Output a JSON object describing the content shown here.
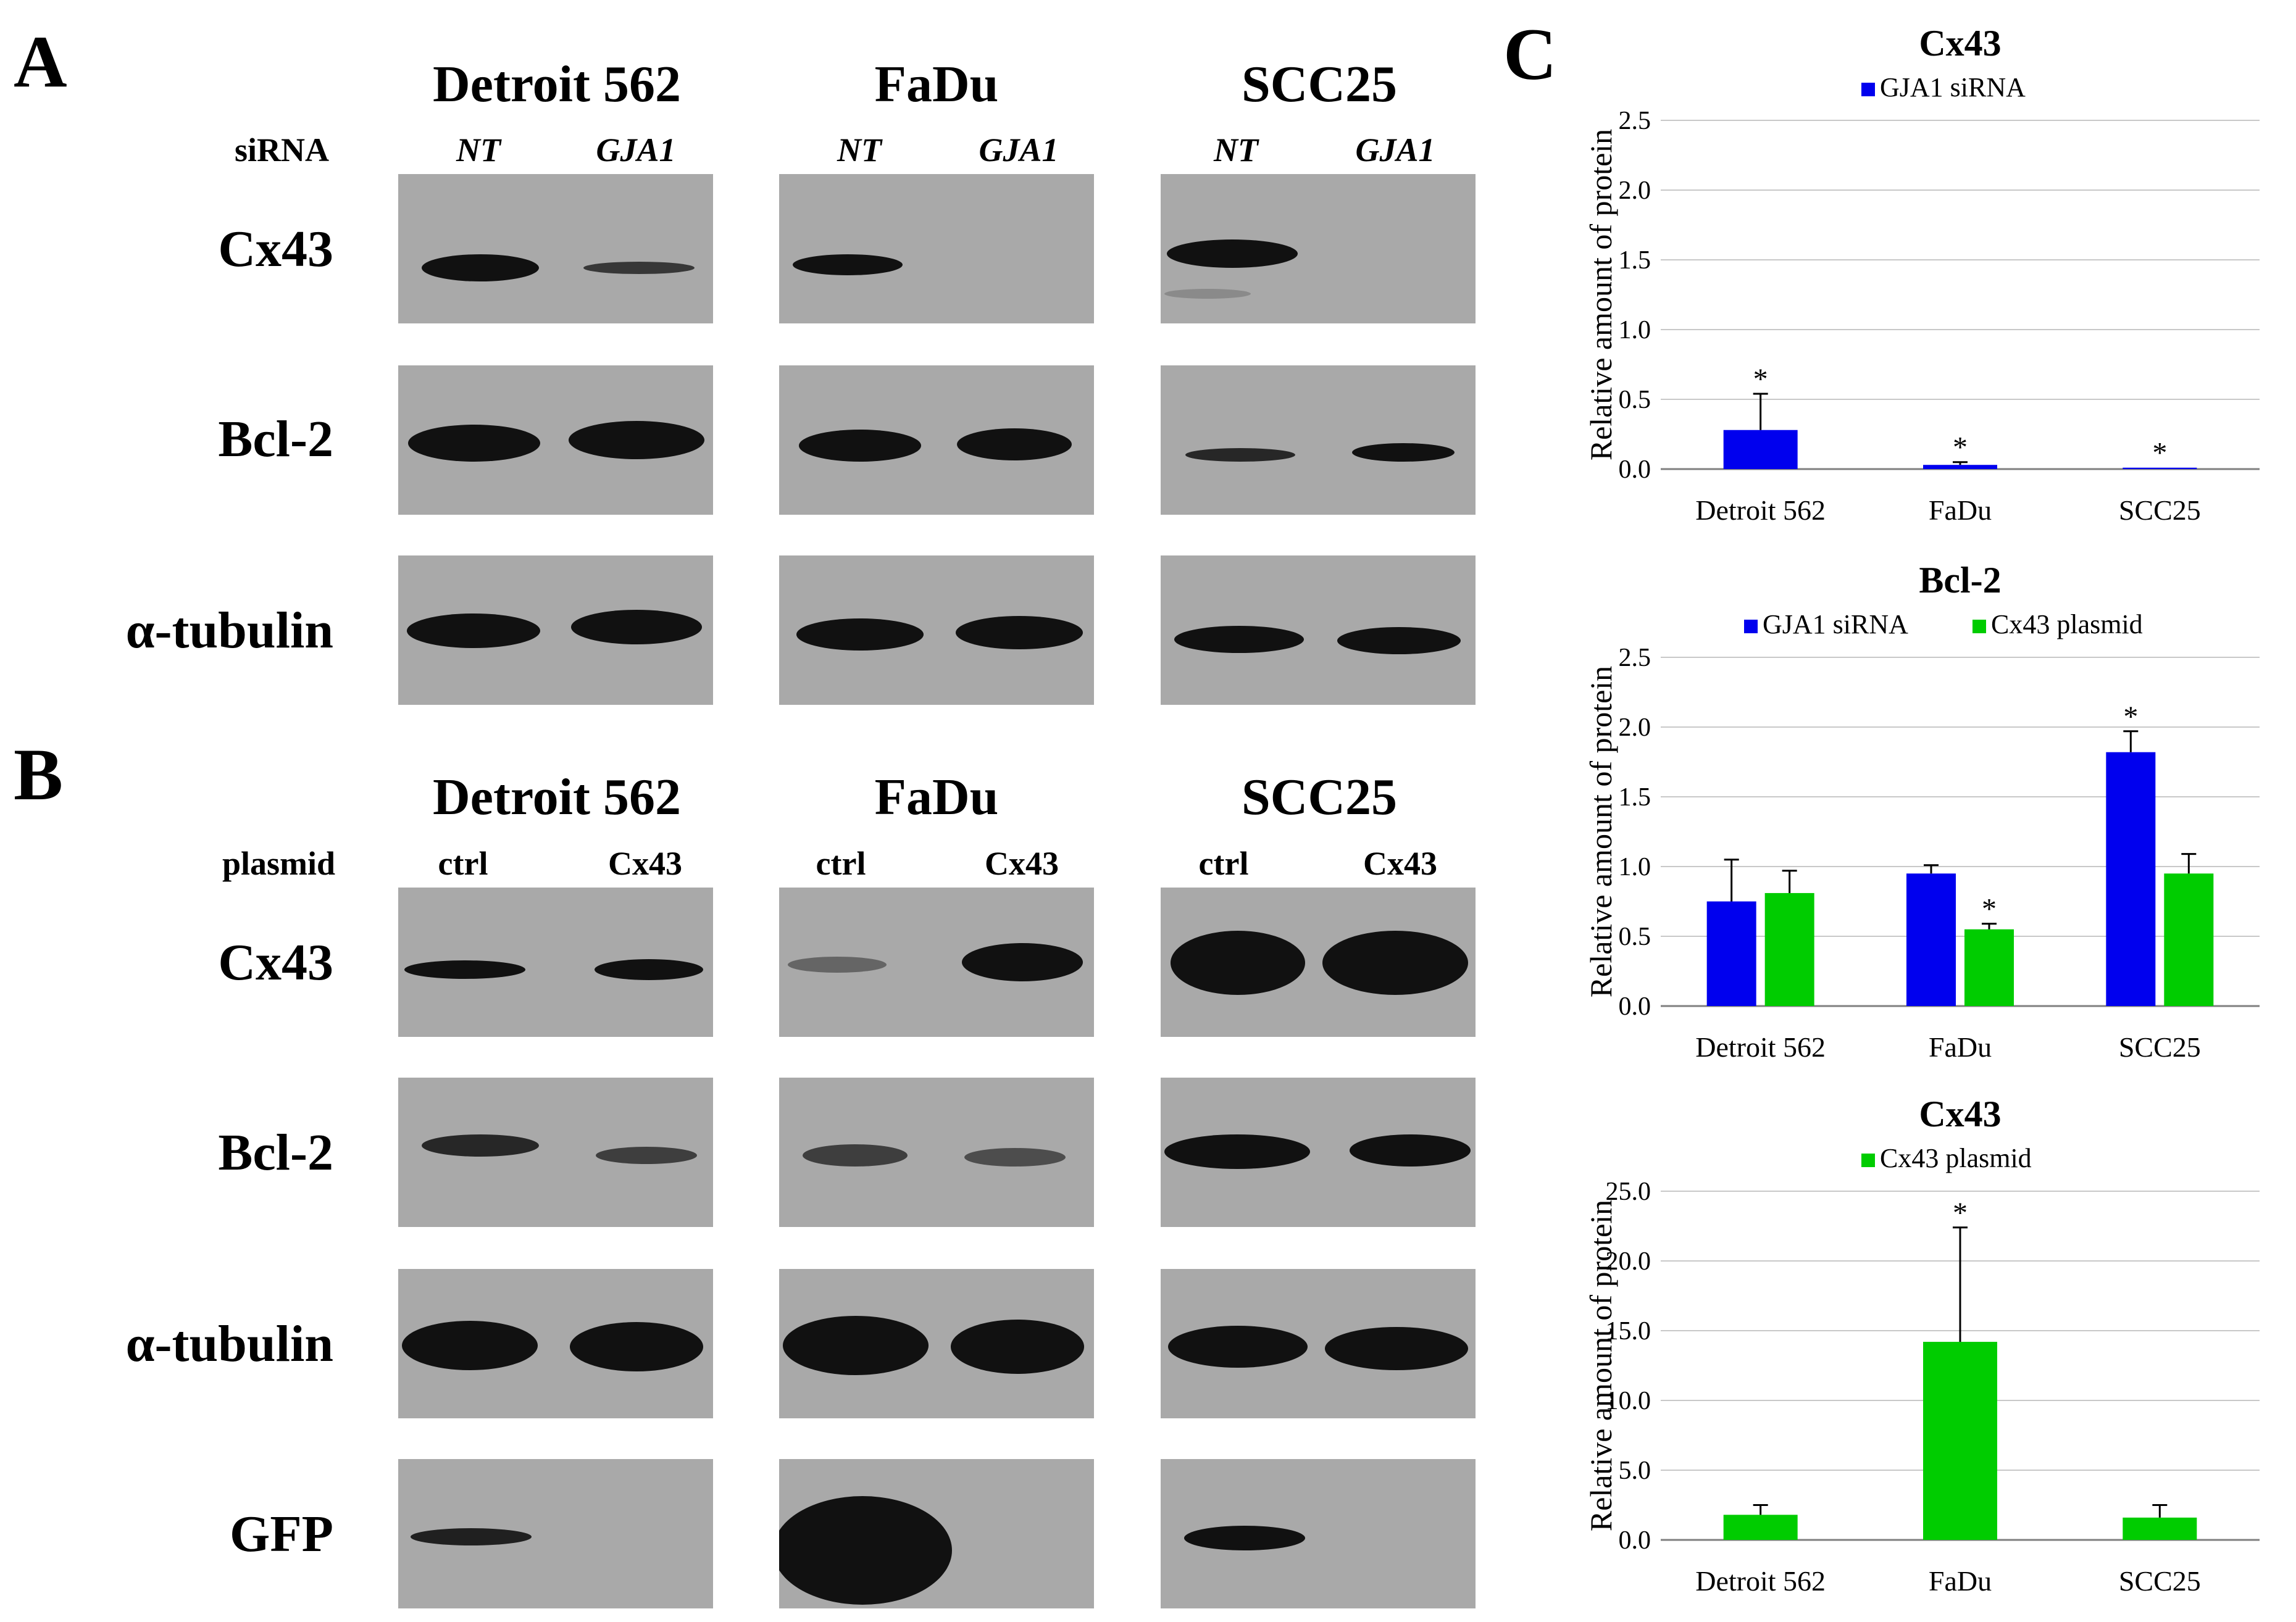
{
  "panels": {
    "a": "A",
    "b": "B",
    "c": "C"
  },
  "cell_lines": [
    "Detroit 562",
    "FaDu",
    "SCC25"
  ],
  "panel_a": {
    "row_head": "siRNA",
    "lanes": [
      "NT",
      "GJA1"
    ],
    "rows": [
      "Cx43",
      "Bcl-2",
      "α-tubulin"
    ]
  },
  "panel_b": {
    "row_head": "plasmid",
    "lanes": [
      "ctrl",
      "Cx43"
    ],
    "rows": [
      "Cx43",
      "Bcl-2",
      "α-tubulin",
      "GFP"
    ]
  },
  "colors": {
    "gja1_sirna": "#0000ee",
    "cx43_plasmid": "#00cc00",
    "blot_background": "#a9a9a9",
    "band": "#111111"
  },
  "chart_data": [
    {
      "type": "bar",
      "title": "Cx43",
      "ylabel": "Relative amount of protein",
      "categories": [
        "Detroit 562",
        "FaDu",
        "SCC25"
      ],
      "ylim": [
        0,
        2.5
      ],
      "yticks": [
        "0.0",
        "0.5",
        "1.0",
        "1.5",
        "2.0",
        "2.5"
      ],
      "legend_position": "top",
      "series": [
        {
          "name": "GJA1 siRNA",
          "color": "#0000ee",
          "values": [
            0.28,
            0.03,
            0.01
          ],
          "errors": [
            0.26,
            0.02,
            0.0
          ],
          "significance": [
            "*",
            "*",
            "*"
          ]
        }
      ]
    },
    {
      "type": "bar",
      "title": "Bcl-2",
      "ylabel": "Relative amount of protein",
      "categories": [
        "Detroit 562",
        "FaDu",
        "SCC25"
      ],
      "ylim": [
        0,
        2.5
      ],
      "yticks": [
        "0.0",
        "0.5",
        "1.0",
        "1.5",
        "2.0",
        "2.5"
      ],
      "legend_position": "top",
      "series": [
        {
          "name": "GJA1 siRNA",
          "color": "#0000ee",
          "values": [
            0.75,
            0.95,
            1.82
          ],
          "errors": [
            0.3,
            0.06,
            0.15
          ],
          "significance": [
            "",
            "",
            "*"
          ]
        },
        {
          "name": "Cx43 plasmid",
          "color": "#00cc00",
          "values": [
            0.81,
            0.55,
            0.95
          ],
          "errors": [
            0.16,
            0.04,
            0.14
          ],
          "significance": [
            "",
            "*",
            ""
          ]
        }
      ]
    },
    {
      "type": "bar",
      "title": "Cx43",
      "ylabel": "Relative amount of protein",
      "categories": [
        "Detroit 562",
        "FaDu",
        "SCC25"
      ],
      "ylim": [
        0,
        25
      ],
      "yticks": [
        "0.0",
        "5.0",
        "10.0",
        "15.0",
        "20.0",
        "25.0"
      ],
      "legend_position": "top",
      "series": [
        {
          "name": "Cx43 plasmid",
          "color": "#00cc00",
          "values": [
            1.8,
            14.2,
            1.6
          ],
          "errors": [
            0.7,
            8.2,
            0.9
          ],
          "significance": [
            "",
            "*",
            ""
          ]
        }
      ]
    }
  ]
}
